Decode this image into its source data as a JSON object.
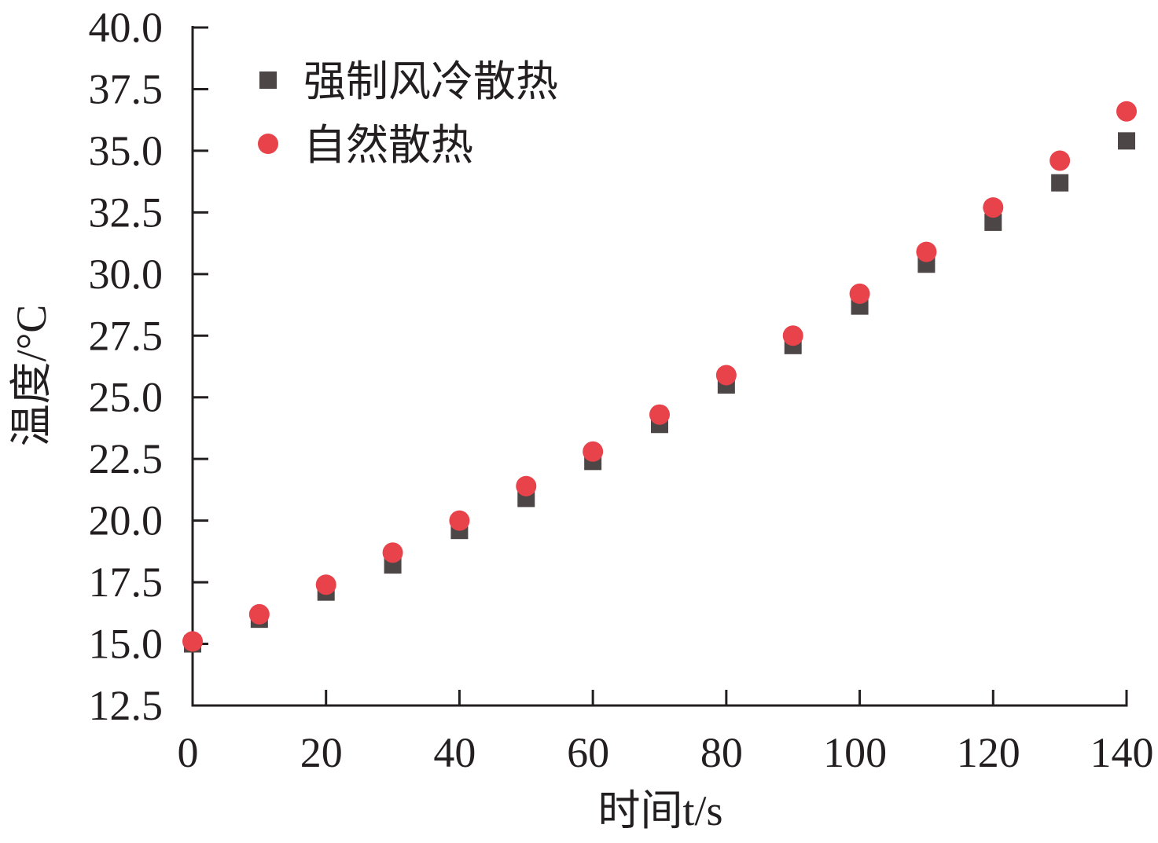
{
  "chart_data": {
    "type": "scatter",
    "title": "",
    "xlabel": "时间t/s",
    "ylabel": "温度/°C",
    "xlim": [
      0,
      140
    ],
    "ylim": [
      12.5,
      40.0
    ],
    "xticks": [
      "0",
      "20",
      "40",
      "60",
      "80",
      "100",
      "120",
      "140"
    ],
    "yticks": [
      "12.5",
      "15.0",
      "17.5",
      "20.0",
      "22.5",
      "25.0",
      "27.5",
      "30.0",
      "32.5",
      "35.0",
      "37.5",
      "40.0"
    ],
    "legend_position": "top-left",
    "grid": false,
    "series": [
      {
        "name": "强制风冷散热",
        "marker": "square",
        "color": "#4d4646",
        "x": [
          0,
          10,
          20,
          30,
          40,
          50,
          60,
          70,
          80,
          90,
          100,
          110,
          120,
          130,
          140
        ],
        "y": [
          15.0,
          16.0,
          17.1,
          18.2,
          19.6,
          20.9,
          22.4,
          23.9,
          25.5,
          27.1,
          28.7,
          30.4,
          32.1,
          33.7,
          35.4
        ]
      },
      {
        "name": "自然散热",
        "marker": "circle",
        "color": "#e8424a",
        "x": [
          0,
          10,
          20,
          30,
          40,
          50,
          60,
          70,
          80,
          90,
          100,
          110,
          120,
          130,
          140
        ],
        "y": [
          15.1,
          16.2,
          17.4,
          18.7,
          20.0,
          21.4,
          22.8,
          24.3,
          25.9,
          27.5,
          29.2,
          30.9,
          32.7,
          34.6,
          36.6
        ]
      }
    ]
  }
}
